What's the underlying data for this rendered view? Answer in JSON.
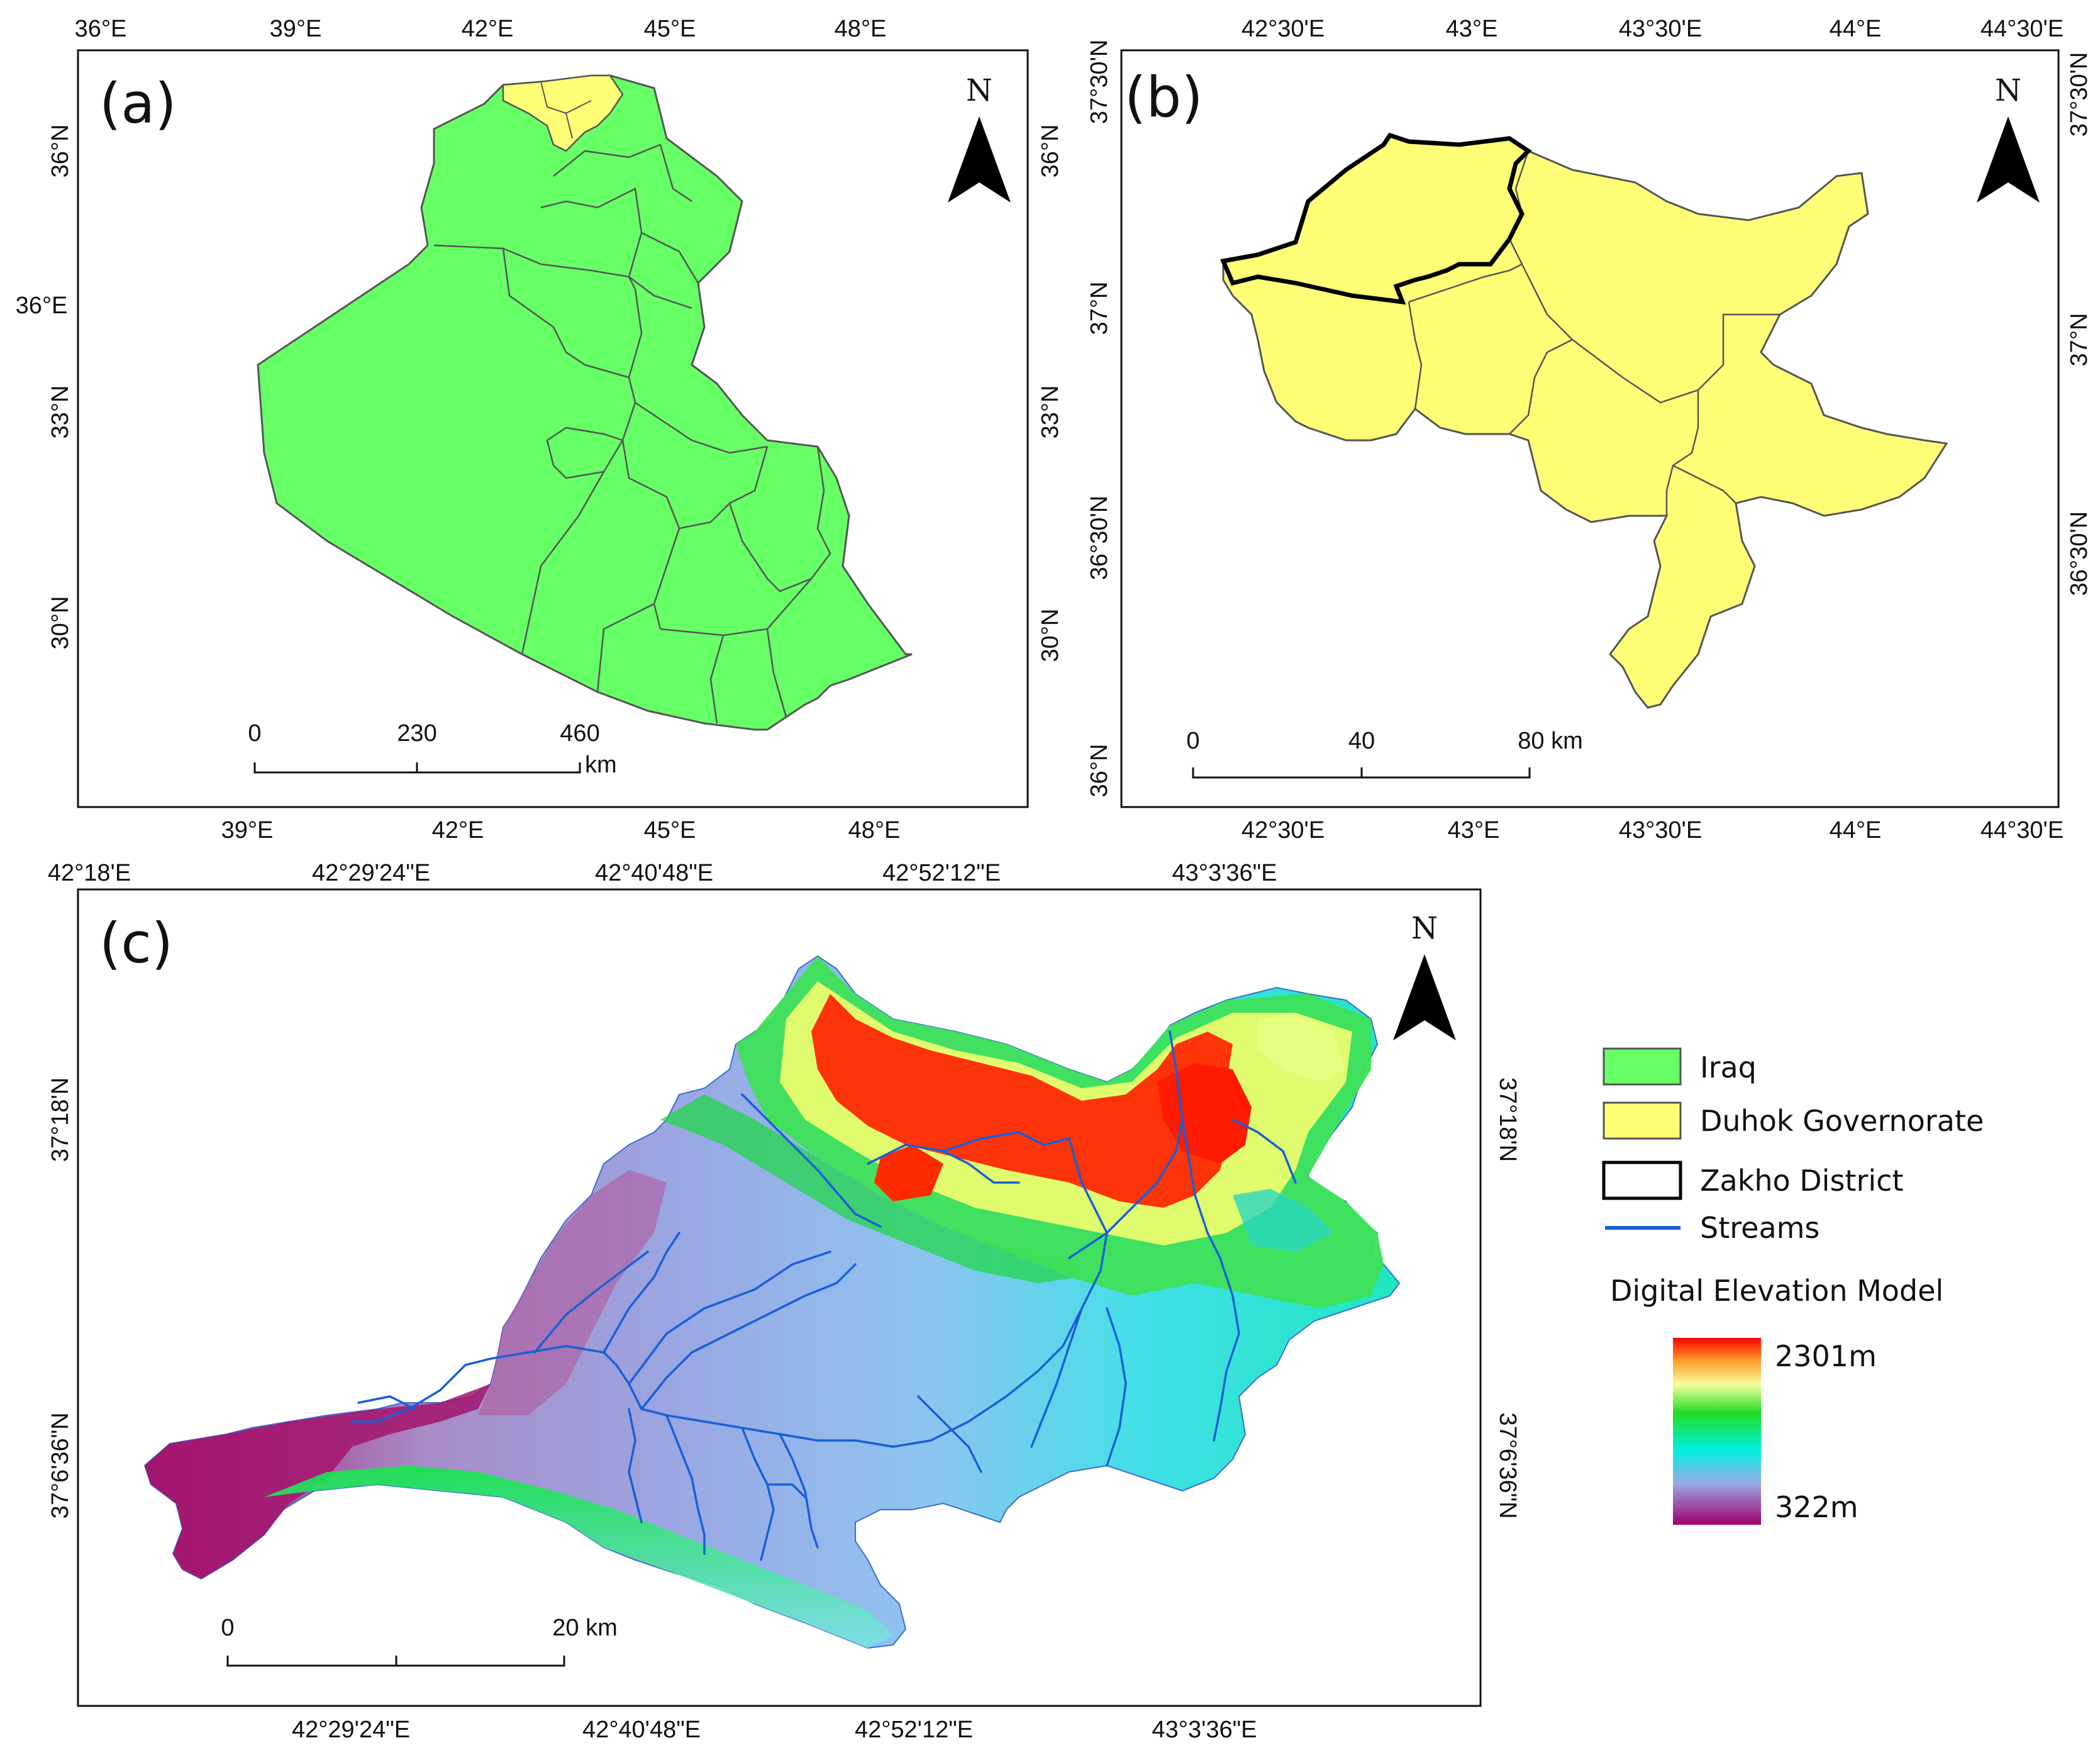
{
  "panels": [
    {
      "id": "a",
      "label": "(a)",
      "north": "N",
      "top_ticks": [
        "36°E",
        "39°E",
        "42°E",
        "45°E",
        "48°E"
      ],
      "bottom_ticks": [
        "39°E",
        "42°E",
        "45°E",
        "48°E"
      ],
      "left_ticks": [
        "36°N",
        "36°E",
        "33°N",
        "30°N"
      ],
      "right_ticks": [
        "36°N",
        "33°N",
        "30°N"
      ],
      "scale": {
        "labels": [
          "0",
          "230",
          "460"
        ],
        "unit": "km"
      }
    },
    {
      "id": "b",
      "label": "(b)",
      "north": "N",
      "top_ticks": [
        "42°30'E",
        "43°E",
        "43°30'E",
        "44°E",
        "44°30'E"
      ],
      "bottom_ticks": [
        "42°30'E",
        "43°E",
        "43°30'E",
        "44°E",
        "44°30'E"
      ],
      "left_ticks": [
        "37°30'N",
        "37°N",
        "36°30'N",
        "36°N"
      ],
      "right_ticks": [
        "37°30'N",
        "37°N",
        "36°30'N"
      ],
      "scale": {
        "labels": [
          "0",
          "40",
          "80 km"
        ],
        "unit": ""
      }
    },
    {
      "id": "c",
      "label": "(c)",
      "north": "N",
      "top_ticks": [
        "42°18'E",
        "42°29'24\"E",
        "42°40'48\"E",
        "42°52'12\"E",
        "43°3'36\"E"
      ],
      "bottom_ticks": [
        "42°29'24\"E",
        "42°40'48\"E",
        "42°52'12\"E",
        "43°3'36\"E"
      ],
      "left_ticks": [
        "37°18'N",
        "37°6'36\"N"
      ],
      "right_ticks": [
        "37°18'N",
        "37°6'36\"N"
      ],
      "scale": {
        "labels": [
          "0",
          "20 km"
        ],
        "unit": ""
      }
    }
  ],
  "legend": {
    "items": [
      {
        "label": "Iraq",
        "color": "#66ff66"
      },
      {
        "label": "Duhok Governorate",
        "color": "#ffff77"
      },
      {
        "label": "Zakho District",
        "color": "#ffffff"
      },
      {
        "label": "Streams",
        "color": "#1a5fd6"
      }
    ],
    "dem_title": "Digital Elevation Model",
    "dem_max": "2301m",
    "dem_min": "322m"
  },
  "colors": {
    "iraq": "#66ff66",
    "duhok": "#ffff77",
    "boundary": "#555555",
    "stream": "#1a5fd6"
  }
}
